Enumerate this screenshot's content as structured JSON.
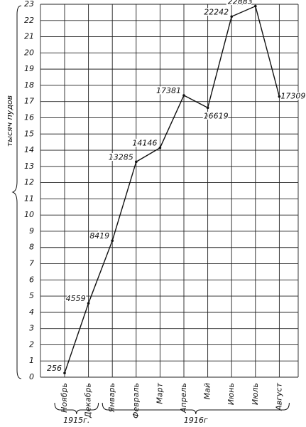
{
  "chart_data": {
    "type": "line",
    "y_label": "тысяч пудов",
    "categories": [
      "Ноябрь",
      "Декабрь",
      "Январь",
      "Февраль",
      "Март",
      "Апрель",
      "Май",
      "Июнь",
      "Июль",
      "Август"
    ],
    "values": [
      0.256,
      4.559,
      8.419,
      13.285,
      14.146,
      17.381,
      16.619,
      22.242,
      22.883,
      17.309
    ],
    "value_labels": [
      "256",
      "4559",
      "8419",
      "13285",
      "14146",
      "17381",
      "16619",
      "22242",
      "22883",
      "17309"
    ],
    "color": "#111",
    "ylim": [
      0,
      23
    ],
    "yticks": [
      0,
      1,
      2,
      3,
      4,
      5,
      6,
      7,
      8,
      9,
      10,
      11,
      12,
      13,
      14,
      15,
      16,
      17,
      18,
      19,
      20,
      21,
      22,
      23
    ],
    "grid": true,
    "year_groups": [
      {
        "label": "1915г.",
        "count": 2
      },
      {
        "label": "1916г",
        "count": 8
      }
    ]
  }
}
